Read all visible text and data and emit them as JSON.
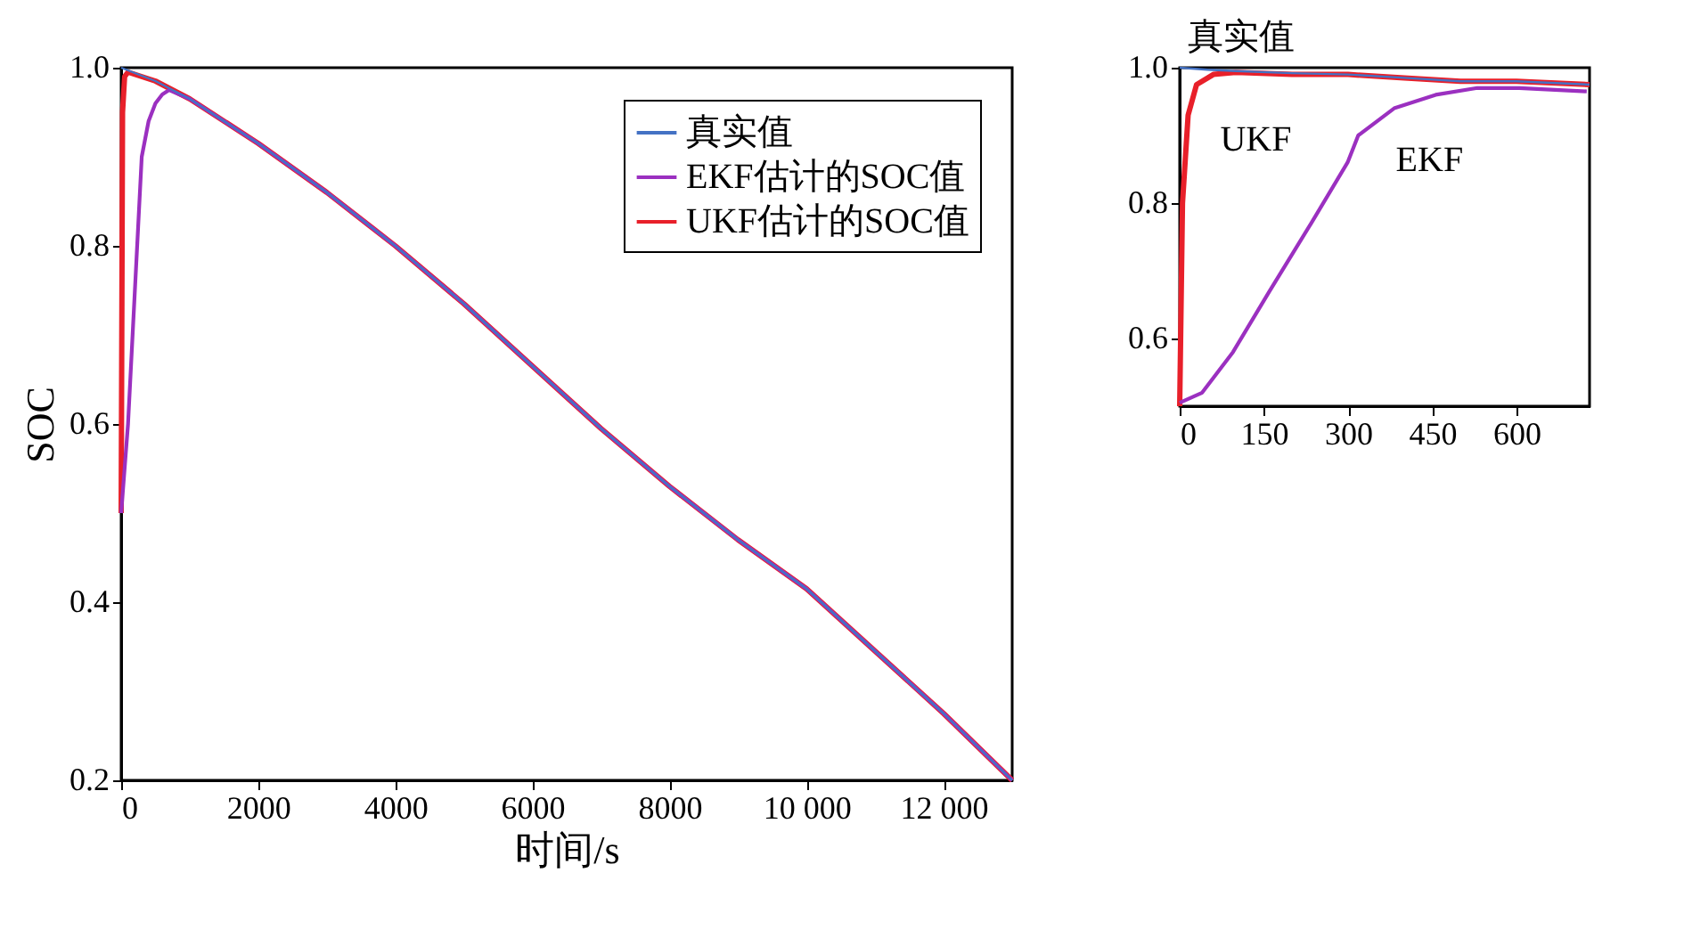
{
  "chart_data": [
    {
      "type": "line",
      "xlabel": "时间/s",
      "ylabel": "SOC",
      "xlim": [
        0,
        13000
      ],
      "ylim": [
        0.2,
        1.0
      ],
      "xticks": [
        0,
        2000,
        4000,
        6000,
        8000,
        {
          "value": 10000,
          "label": "10 000"
        },
        {
          "value": 12000,
          "label": "12 000"
        }
      ],
      "yticks": [
        0.2,
        0.4,
        0.6,
        0.8,
        {
          "value": 1.0,
          "label": "1.0"
        }
      ],
      "grid": false,
      "legend": "top right",
      "line_style": "solid",
      "marker": "none",
      "series": [
        {
          "name": "真实值",
          "color": "#4472c4",
          "x": [
            0,
            500,
            1000,
            2000,
            3000,
            4000,
            5000,
            6000,
            7000,
            8000,
            9000,
            10000,
            11000,
            12000,
            13000
          ],
          "values": [
            1.0,
            0.985,
            0.965,
            0.915,
            0.86,
            0.8,
            0.735,
            0.665,
            0.595,
            0.53,
            0.47,
            0.415,
            0.345,
            0.275,
            0.2
          ]
        },
        {
          "name": "EKF估计的SOC值",
          "color": "#9b30c0",
          "x": [
            0,
            100,
            200,
            300,
            400,
            500,
            600,
            700,
            1000,
            2000,
            3000,
            4000,
            5000,
            6000,
            7000,
            8000,
            9000,
            10000,
            11000,
            12000,
            13000
          ],
          "values": [
            0.5,
            0.6,
            0.75,
            0.9,
            0.94,
            0.96,
            0.97,
            0.975,
            0.965,
            0.915,
            0.86,
            0.8,
            0.735,
            0.665,
            0.595,
            0.53,
            0.47,
            0.415,
            0.345,
            0.275,
            0.2
          ]
        },
        {
          "name": "UKF估计的SOC值",
          "color": "#e8202a",
          "x": [
            0,
            20,
            50,
            100,
            500,
            1000,
            2000,
            3000,
            4000,
            5000,
            6000,
            7000,
            8000,
            9000,
            10000,
            11000,
            12000,
            13000
          ],
          "values": [
            0.5,
            0.95,
            0.99,
            0.995,
            0.985,
            0.965,
            0.915,
            0.86,
            0.8,
            0.735,
            0.665,
            0.595,
            0.53,
            0.47,
            0.415,
            0.345,
            0.275,
            0.2
          ]
        }
      ]
    },
    {
      "type": "line",
      "xlim": [
        0,
        730
      ],
      "ylim": [
        0.5,
        1.0
      ],
      "xticks": [
        0,
        150,
        300,
        450,
        600
      ],
      "yticks": [
        0.6,
        0.8,
        {
          "value": 1.0,
          "label": "1.0"
        }
      ],
      "grid": false,
      "legend": false,
      "line_style": "solid",
      "marker": "none",
      "annotations": [
        {
          "text": "真实值",
          "x": 30,
          "y": 0.998
        },
        {
          "text": "UKF",
          "x": 15,
          "y": 0.93
        },
        {
          "text": "EKF",
          "x": 318,
          "y": 0.9
        }
      ],
      "series": [
        {
          "color": "#4472c4",
          "x": [
            0,
            50,
            100,
            200,
            300,
            400,
            500,
            600,
            730
          ],
          "values": [
            1.0,
            0.997,
            0.995,
            0.992,
            0.99,
            0.985,
            0.98,
            0.98,
            0.975
          ]
        },
        {
          "color": "#9b30c0",
          "x": [
            0,
            40,
            95,
            160,
            234,
            299,
            318,
            382,
            456,
            530,
            605,
            725
          ],
          "values": [
            0.505,
            0.52,
            0.58,
            0.67,
            0.77,
            0.86,
            0.9,
            0.94,
            0.96,
            0.97,
            0.97,
            0.965
          ]
        },
        {
          "color": "#e8202a",
          "x": [
            0,
            5,
            15,
            30,
            60,
            100,
            200,
            300,
            400,
            500,
            600,
            730
          ],
          "values": [
            0.5,
            0.8,
            0.93,
            0.975,
            0.99,
            0.993,
            0.99,
            0.99,
            0.985,
            0.98,
            0.98,
            0.975
          ]
        }
      ]
    }
  ]
}
